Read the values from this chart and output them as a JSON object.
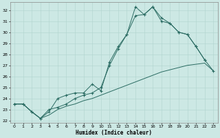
{
  "xlabel": "Humidex (Indice chaleur)",
  "xlim": [
    -0.5,
    23.5
  ],
  "ylim": [
    21.8,
    32.7
  ],
  "yticks": [
    22,
    23,
    24,
    25,
    26,
    27,
    28,
    29,
    30,
    31,
    32
  ],
  "xticks": [
    0,
    1,
    2,
    3,
    4,
    5,
    6,
    7,
    8,
    9,
    10,
    11,
    12,
    13,
    14,
    15,
    16,
    17,
    18,
    19,
    20,
    21,
    22,
    23
  ],
  "bg_color": "#cce8e4",
  "grid_color": "#b0d4ce",
  "line_color": "#2a6b62",
  "line1_x": [
    0,
    1,
    2,
    3,
    4,
    5,
    6,
    7,
    8,
    9,
    10,
    11,
    12,
    13,
    14,
    15,
    16,
    17,
    18,
    19,
    20,
    21,
    22,
    23
  ],
  "line1_y": [
    23.5,
    23.5,
    22.8,
    22.2,
    22.5,
    23.0,
    23.3,
    23.5,
    23.8,
    24.0,
    24.3,
    24.6,
    24.9,
    25.2,
    25.5,
    25.8,
    26.1,
    26.4,
    26.6,
    26.8,
    27.0,
    27.1,
    27.2,
    26.5
  ],
  "line2_x": [
    0,
    1,
    2,
    3,
    4,
    5,
    6,
    7,
    8,
    9,
    10,
    11,
    12,
    13,
    14,
    15,
    16,
    17,
    18,
    19,
    20,
    21,
    22
  ],
  "line2_y": [
    23.5,
    23.5,
    22.8,
    22.2,
    22.8,
    24.0,
    24.3,
    24.5,
    24.5,
    25.3,
    24.7,
    27.3,
    28.7,
    29.8,
    32.3,
    31.6,
    32.3,
    31.3,
    30.8,
    30.0,
    29.8,
    28.7,
    27.5
  ],
  "line3_x": [
    0,
    1,
    2,
    3,
    4,
    5,
    6,
    7,
    8,
    9,
    10,
    11,
    12,
    13,
    14,
    15,
    16,
    17,
    18,
    19,
    20,
    21,
    22,
    23
  ],
  "line3_y": [
    23.5,
    23.5,
    22.8,
    22.2,
    23.0,
    23.2,
    23.5,
    24.0,
    24.3,
    24.5,
    25.0,
    27.0,
    28.5,
    29.8,
    31.5,
    31.6,
    32.3,
    31.0,
    30.8,
    30.0,
    29.8,
    28.7,
    27.5,
    26.5
  ]
}
